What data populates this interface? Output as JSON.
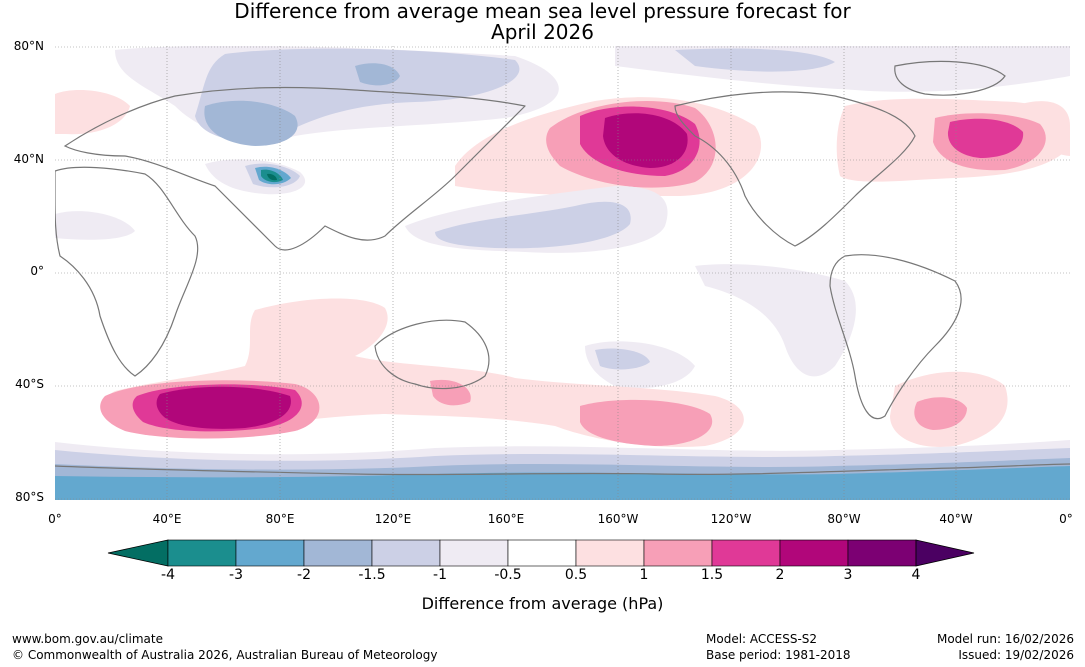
{
  "title": {
    "line1": "Difference from average mean sea level pressure forecast for",
    "line2": "April 2026"
  },
  "lat_labels": [
    "80°N",
    "40°N",
    "0°",
    "40°S",
    "80°S"
  ],
  "lon_labels": [
    "0°",
    "40°E",
    "80°E",
    "120°E",
    "160°E",
    "160°W",
    "120°W",
    "80°W",
    "40°W",
    "0°"
  ],
  "colorbar": {
    "ticks": [
      "-4",
      "-3",
      "-2",
      "-1.5",
      "-1",
      "-0.5",
      "0.5",
      "1",
      "1.5",
      "2",
      "3",
      "4"
    ],
    "colors": [
      "#1b8e8e",
      "#63a8cf",
      "#a2b7d6",
      "#ccd0e6",
      "#efebf3",
      "#ffffff",
      "#fde0e1",
      "#f79fb7",
      "#e03997",
      "#b1067a",
      "#7c0073"
    ],
    "under_color": "#036e63",
    "over_color": "#4b0062",
    "label": "Difference from average (hPa)"
  },
  "footer": {
    "url": "www.bom.gov.au/climate",
    "copyright": "© Commonwealth of Australia 2026, Australian Bureau of Meteorology",
    "model": "Model: ACCESS-S2",
    "base_period": "Base period: 1981-2018",
    "model_run": "Model run: 16/02/2026",
    "issued": "Issued: 19/02/2026"
  }
}
